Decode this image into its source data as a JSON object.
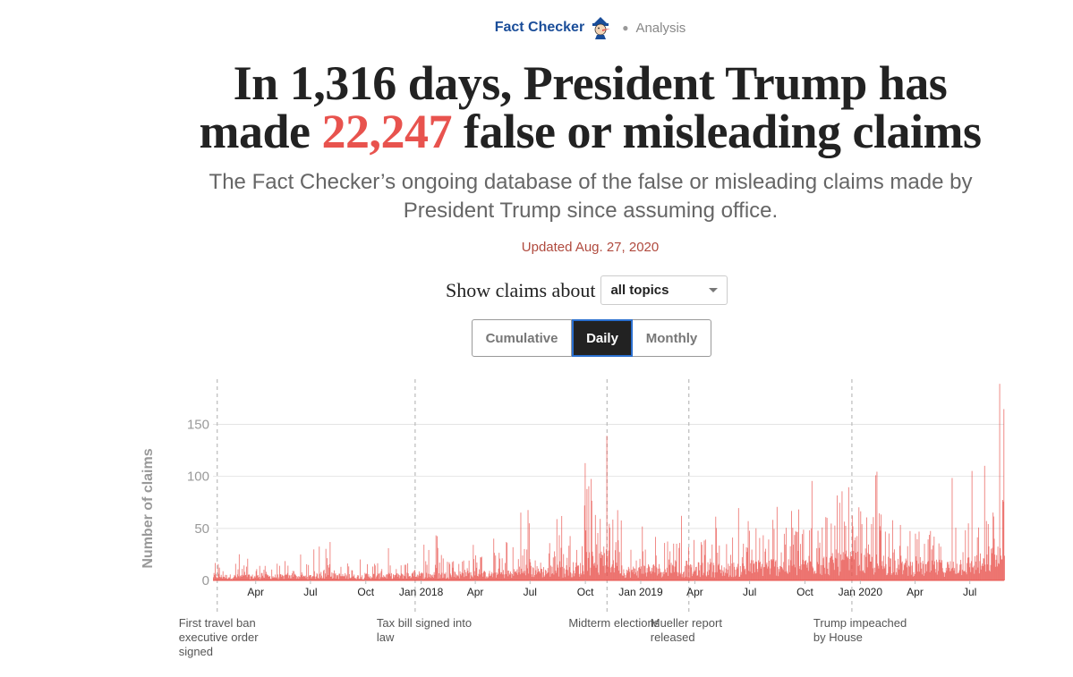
{
  "brand": {
    "name": "Fact Checker",
    "mascot_icon": "pinocchio-icon",
    "kicker": "Analysis"
  },
  "headline": {
    "line1": "In 1,316 days, President Trump has",
    "line2_pre": "made ",
    "count": "22,247",
    "line2_post": " false or misleading claims",
    "accent_color": "#e8534e"
  },
  "dek": "The Fact Checker’s ongoing database of the false or misleading claims made by President Trump since assuming office.",
  "updated": "Updated Aug. 27, 2020",
  "filter": {
    "label": "Show claims about",
    "selected": "all topics"
  },
  "view_toggle": {
    "options": [
      "Cumulative",
      "Daily",
      "Monthly"
    ],
    "active": "Daily"
  },
  "chart_data": {
    "type": "bar",
    "ylabel": "Number of claims",
    "y_ticks": [
      0,
      50,
      100,
      150
    ],
    "ylim": [
      0,
      190
    ],
    "grid": true,
    "x_tick_labels": [
      "Apr",
      "Jul",
      "Oct",
      "Jan 2018",
      "Apr",
      "Jul",
      "Oct",
      "Jan 2019",
      "Apr",
      "Jul",
      "Oct",
      "Jan 2020",
      "Apr",
      "Jul"
    ],
    "bar_color": "#e8534e",
    "annotations": [
      {
        "date": "2017-01-27",
        "lines": [
          "First travel ban",
          "executive order",
          "signed"
        ]
      },
      {
        "date": "2017-12-22",
        "lines": [
          "Tax bill signed into",
          "law"
        ]
      },
      {
        "date": "2018-11-06",
        "lines": [
          "Midterm elections"
        ]
      },
      {
        "date": "2019-03-22",
        "lines": [
          "Mueller report",
          "released"
        ]
      },
      {
        "date": "2019-12-18",
        "lines": [
          "Trump impeached",
          "by House"
        ]
      }
    ],
    "monthly_daily_level": [
      {
        "month": "2017-01",
        "typical": 6,
        "peak": 15
      },
      {
        "month": "2017-02",
        "typical": 5,
        "peak": 20
      },
      {
        "month": "2017-03",
        "typical": 5,
        "peak": 30
      },
      {
        "month": "2017-04",
        "typical": 5,
        "peak": 25
      },
      {
        "month": "2017-05",
        "typical": 5,
        "peak": 22
      },
      {
        "month": "2017-06",
        "typical": 5,
        "peak": 25
      },
      {
        "month": "2017-07",
        "typical": 6,
        "peak": 35
      },
      {
        "month": "2017-08",
        "typical": 6,
        "peak": 55
      },
      {
        "month": "2017-09",
        "typical": 5,
        "peak": 28
      },
      {
        "month": "2017-10",
        "typical": 6,
        "peak": 42
      },
      {
        "month": "2017-11",
        "typical": 6,
        "peak": 45
      },
      {
        "month": "2017-12",
        "typical": 7,
        "peak": 48
      },
      {
        "month": "2018-01",
        "typical": 7,
        "peak": 45
      },
      {
        "month": "2018-02",
        "typical": 7,
        "peak": 30
      },
      {
        "month": "2018-03",
        "typical": 8,
        "peak": 38
      },
      {
        "month": "2018-04",
        "typical": 8,
        "peak": 40
      },
      {
        "month": "2018-05",
        "typical": 9,
        "peak": 45
      },
      {
        "month": "2018-06",
        "typical": 11,
        "peak": 70
      },
      {
        "month": "2018-07",
        "typical": 12,
        "peak": 80
      },
      {
        "month": "2018-08",
        "typical": 13,
        "peak": 75
      },
      {
        "month": "2018-09",
        "typical": 15,
        "peak": 125
      },
      {
        "month": "2018-10",
        "typical": 22,
        "peak": 100
      },
      {
        "month": "2018-11",
        "typical": 25,
        "peak": 140
      },
      {
        "month": "2018-12",
        "typical": 12,
        "peak": 50
      },
      {
        "month": "2019-01",
        "typical": 14,
        "peak": 75
      },
      {
        "month": "2019-02",
        "typical": 14,
        "peak": 85
      },
      {
        "month": "2019-03",
        "typical": 13,
        "peak": 70
      },
      {
        "month": "2019-04",
        "typical": 15,
        "peak": 105
      },
      {
        "month": "2019-05",
        "typical": 14,
        "peak": 65
      },
      {
        "month": "2019-06",
        "typical": 15,
        "peak": 70
      },
      {
        "month": "2019-07",
        "typical": 17,
        "peak": 85
      },
      {
        "month": "2019-08",
        "typical": 19,
        "peak": 75
      },
      {
        "month": "2019-09",
        "typical": 17,
        "peak": 80
      },
      {
        "month": "2019-10",
        "typical": 22,
        "peak": 115
      },
      {
        "month": "2019-11",
        "typical": 22,
        "peak": 105
      },
      {
        "month": "2019-12",
        "typical": 24,
        "peak": 113
      },
      {
        "month": "2020-01",
        "typical": 22,
        "peak": 115
      },
      {
        "month": "2020-02",
        "typical": 22,
        "peak": 115
      },
      {
        "month": "2020-03",
        "typical": 18,
        "peak": 60
      },
      {
        "month": "2020-04",
        "typical": 16,
        "peak": 45
      },
      {
        "month": "2020-05",
        "typical": 17,
        "peak": 60
      },
      {
        "month": "2020-06",
        "typical": 20,
        "peak": 105
      },
      {
        "month": "2020-07",
        "typical": 22,
        "peak": 115
      },
      {
        "month": "2020-08",
        "typical": 28,
        "peak": 189
      }
    ]
  }
}
